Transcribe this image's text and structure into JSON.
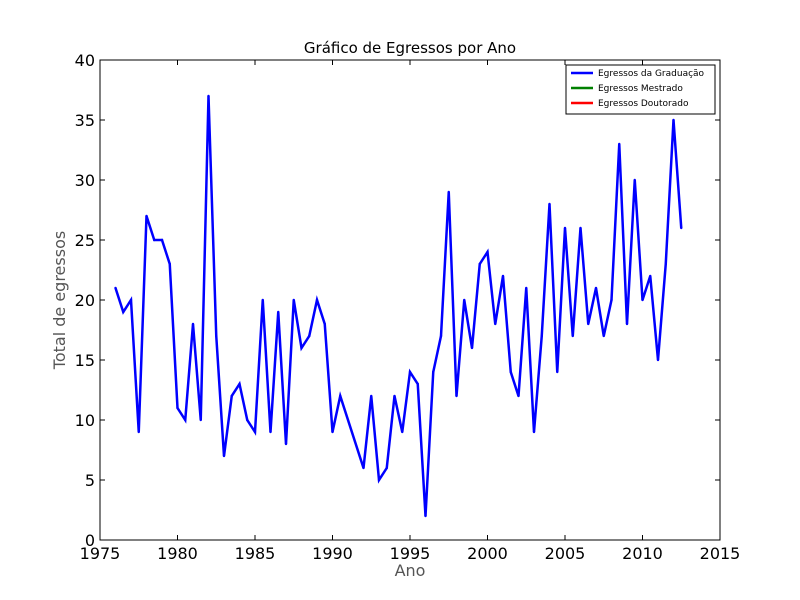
{
  "chart_data": {
    "type": "line",
    "title": "Gráfico de Egressos por Ano",
    "xlabel": "Ano",
    "ylabel": "Total de egressos",
    "xlim": [
      1975,
      2015
    ],
    "ylim": [
      0,
      40
    ],
    "xticks": [
      "1975",
      "1980",
      "1985",
      "1990",
      "1995",
      "2000",
      "2005",
      "2010",
      "2015"
    ],
    "yticks": [
      "0",
      "5",
      "10",
      "15",
      "20",
      "25",
      "30",
      "35",
      "40"
    ],
    "grid": false,
    "legend_position": "top-right",
    "series": [
      {
        "name": "Egressos da Graduação",
        "color": "#0000ff",
        "points": [
          [
            1976.0,
            21
          ],
          [
            1976.5,
            19
          ],
          [
            1977.0,
            20
          ],
          [
            1977.5,
            9
          ],
          [
            1978.0,
            27
          ],
          [
            1978.5,
            25
          ],
          [
            1979.0,
            25
          ],
          [
            1979.5,
            23
          ],
          [
            1980.0,
            11
          ],
          [
            1980.5,
            10
          ],
          [
            1981.0,
            18
          ],
          [
            1981.5,
            10
          ],
          [
            1982.0,
            37
          ],
          [
            1982.5,
            17
          ],
          [
            1983.0,
            7
          ],
          [
            1983.5,
            12
          ],
          [
            1984.0,
            13
          ],
          [
            1984.5,
            10
          ],
          [
            1985.0,
            9
          ],
          [
            1985.5,
            20
          ],
          [
            1986.0,
            9
          ],
          [
            1986.5,
            19
          ],
          [
            1987.0,
            8
          ],
          [
            1987.5,
            20
          ],
          [
            1988.0,
            16
          ],
          [
            1988.5,
            17
          ],
          [
            1989.0,
            20
          ],
          [
            1989.5,
            18
          ],
          [
            1990.0,
            9
          ],
          [
            1990.5,
            12
          ],
          [
            1992.0,
            6
          ],
          [
            1992.5,
            12
          ],
          [
            1993.0,
            5
          ],
          [
            1993.5,
            6
          ],
          [
            1994.0,
            12
          ],
          [
            1994.5,
            9
          ],
          [
            1995.0,
            14
          ],
          [
            1995.5,
            13
          ],
          [
            1996.0,
            2
          ],
          [
            1996.5,
            14
          ],
          [
            1997.0,
            17
          ],
          [
            1997.5,
            29
          ],
          [
            1998.0,
            12
          ],
          [
            1998.5,
            20
          ],
          [
            1999.0,
            16
          ],
          [
            1999.5,
            23
          ],
          [
            2000.0,
            24
          ],
          [
            2000.5,
            18
          ],
          [
            2001.0,
            22
          ],
          [
            2001.5,
            14
          ],
          [
            2002.0,
            12
          ],
          [
            2002.5,
            21
          ],
          [
            2003.0,
            9
          ],
          [
            2003.5,
            17
          ],
          [
            2004.0,
            28
          ],
          [
            2004.5,
            14
          ],
          [
            2005.0,
            26
          ],
          [
            2005.5,
            17
          ],
          [
            2006.0,
            26
          ],
          [
            2006.5,
            18
          ],
          [
            2007.0,
            21
          ],
          [
            2007.5,
            17
          ],
          [
            2008.0,
            20
          ],
          [
            2008.5,
            33
          ],
          [
            2009.0,
            18
          ],
          [
            2009.5,
            30
          ],
          [
            2010.0,
            20
          ],
          [
            2010.5,
            22
          ],
          [
            2011.0,
            15
          ],
          [
            2011.5,
            23
          ],
          [
            2012.0,
            35
          ],
          [
            2012.5,
            26
          ]
        ]
      },
      {
        "name": "Egressos Mestrado",
        "color": "#008000",
        "points": []
      },
      {
        "name": "Egressos Doutorado",
        "color": "#ff0000",
        "points": []
      }
    ]
  }
}
